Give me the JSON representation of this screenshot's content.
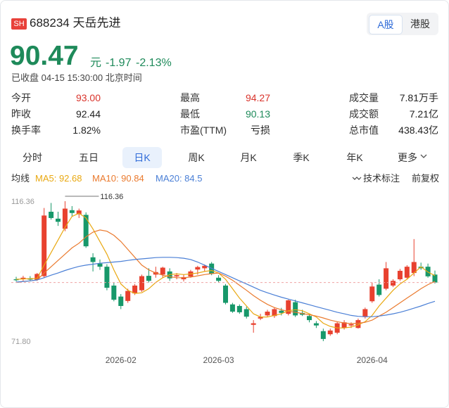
{
  "header": {
    "exchange": "SH",
    "code_name": "688234 天岳先进",
    "markets": [
      "A股",
      "港股"
    ],
    "active_market": 0
  },
  "quote": {
    "price": "90.47",
    "unit": "元",
    "change": "-1.97",
    "change_pct": "-2.13%",
    "color": "#1e8a5a",
    "status": "已收盘 04-15 15:30:00 北京时间"
  },
  "stats": [
    [
      {
        "label": "今开",
        "value": "93.00",
        "color": "#d9332b"
      },
      {
        "label": "最高",
        "value": "94.27",
        "color": "#d9332b"
      },
      {
        "label": "成交量",
        "value": "7.81万手"
      }
    ],
    [
      {
        "label": "昨收",
        "value": "92.44"
      },
      {
        "label": "最低",
        "value": "90.13",
        "color": "#1e8a5a"
      },
      {
        "label": "成交额",
        "value": "7.21亿"
      }
    ],
    [
      {
        "label": "换手率",
        "value": "1.82%"
      },
      {
        "label": "市盈(TTM)",
        "value": "亏损"
      },
      {
        "label": "总市值",
        "value": "438.43亿"
      }
    ]
  ],
  "tabs": [
    "分时",
    "五日",
    "日K",
    "周K",
    "月K",
    "季K",
    "年K",
    "更多"
  ],
  "active_tab": 2,
  "indicators": {
    "label": "均线",
    "tech": "技术标注",
    "adjust": "前复权"
  },
  "chart_data": {
    "type": "candlestick",
    "up_color": "#e8412f",
    "down_color": "#17986a",
    "categories": [
      null,
      null,
      null,
      null,
      null,
      null,
      null,
      null,
      null,
      null,
      null,
      null,
      null,
      null,
      null,
      "2026-02",
      null,
      null,
      null,
      null,
      null,
      null,
      null,
      null,
      null,
      null,
      null,
      null,
      null,
      "2026-03",
      null,
      null,
      null,
      null,
      null,
      null,
      null,
      null,
      null,
      null,
      null,
      null,
      null,
      null,
      null,
      null,
      null,
      null,
      null,
      null,
      null,
      "2026-04",
      null,
      null,
      null,
      null,
      null,
      null,
      null,
      null,
      null
    ],
    "open": [
      91.5,
      91.6,
      91.8,
      91.4,
      92.5,
      113.0,
      110.8,
      107.6,
      113.5,
      112.2,
      112.0,
      98.5,
      96.5,
      95.5,
      89.5,
      86.0,
      84.6,
      87.0,
      88.0,
      92.6,
      93.0,
      93.0,
      94.0,
      92.4,
      91.5,
      92.4,
      94.6,
      95.0,
      96.5,
      92.0,
      89.5,
      83.5,
      83.0,
      82.0,
      77.0,
      79.0,
      80.0,
      79.8,
      81.5,
      80.5,
      84.2,
      80.8,
      79.8,
      77.5,
      75.0,
      74.0,
      74.5,
      76.0,
      76.8,
      76.0,
      79.5,
      84.5,
      89.8,
      88.5,
      89.5,
      91.5,
      92.0,
      93.5,
      95.5,
      95.5,
      93.0
    ],
    "high": [
      92.3,
      92.6,
      92.5,
      93.5,
      114.2,
      115.8,
      113.0,
      116.36,
      114.8,
      114.0,
      112.8,
      99.8,
      97.8,
      96.3,
      90.5,
      86.8,
      88.5,
      90.0,
      93.0,
      95.0,
      95.5,
      95.5,
      95.0,
      93.5,
      93.0,
      94.5,
      95.8,
      96.2,
      97.0,
      92.8,
      90.0,
      84.0,
      83.5,
      82.8,
      78.5,
      80.5,
      81.8,
      82.5,
      82.4,
      85.0,
      85.0,
      81.8,
      80.5,
      78.2,
      75.8,
      75.8,
      78.0,
      78.5,
      77.8,
      79.0,
      82.5,
      90.5,
      91.5,
      97.0,
      91.5,
      94.8,
      96.0,
      104.3,
      96.8,
      96.5,
      94.27
    ],
    "low": [
      90.8,
      91.0,
      90.9,
      91.0,
      92.0,
      110.5,
      108.5,
      106.8,
      111.5,
      111.0,
      101.5,
      94.0,
      94.5,
      88.0,
      84.5,
      82.0,
      84.0,
      86.5,
      87.5,
      90.5,
      92.0,
      92.0,
      91.0,
      91.5,
      90.8,
      92.0,
      93.0,
      94.0,
      92.8,
      90.5,
      83.5,
      80.8,
      80.5,
      79.0,
      74.5,
      78.5,
      79.5,
      79.2,
      80.0,
      80.0,
      79.5,
      79.8,
      77.8,
      76.0,
      71.8,
      73.5,
      74.0,
      75.5,
      76.0,
      75.8,
      79.0,
      84.0,
      86.0,
      88.0,
      89.0,
      91.0,
      91.5,
      92.5,
      94.5,
      92.0,
      90.13
    ],
    "close": [
      91.2,
      92.0,
      91.4,
      93.2,
      111.8,
      111.0,
      109.8,
      114.0,
      112.6,
      113.4,
      102.0,
      97.0,
      95.5,
      88.8,
      85.0,
      83.0,
      87.8,
      89.5,
      92.5,
      91.0,
      93.8,
      95.2,
      91.8,
      92.8,
      92.2,
      94.0,
      95.4,
      95.8,
      93.2,
      91.0,
      84.0,
      81.2,
      81.0,
      79.6,
      77.5,
      79.5,
      81.2,
      82.0,
      80.8,
      84.8,
      80.0,
      80.2,
      78.5,
      76.8,
      72.5,
      75.2,
      77.5,
      77.8,
      77.2,
      78.5,
      82.0,
      89.2,
      86.5,
      95.0,
      91.0,
      94.2,
      95.5,
      97.0,
      95.0,
      92.44,
      90.47
    ],
    "series": [
      {
        "name": "MA5: 92.68",
        "color": "#e9a811",
        "values": [
          91.5,
          91.6,
          91.7,
          91.8,
          96.0,
          100.0,
          104.0,
          108.0,
          111.5,
          112.5,
          111.0,
          107.5,
          103.5,
          99.5,
          94.5,
          90.0,
          88.0,
          87.0,
          87.2,
          88.5,
          90.5,
          92.0,
          93.0,
          93.2,
          93.0,
          93.2,
          93.5,
          94.0,
          94.3,
          93.5,
          91.5,
          88.5,
          85.5,
          83.0,
          80.5,
          79.5,
          79.5,
          80.0,
          80.5,
          81.5,
          81.8,
          81.5,
          80.5,
          79.5,
          77.5,
          76.5,
          76.0,
          76.0,
          76.3,
          77.0,
          78.0,
          80.0,
          83.0,
          85.5,
          88.0,
          90.0,
          91.5,
          93.5,
          95.5,
          93.8,
          92.68
        ]
      },
      {
        "name": "MA10: 90.84",
        "color": "#ea7a2e",
        "values": [
          90.5,
          90.8,
          91.0,
          91.3,
          93.5,
          95.5,
          97.5,
          99.5,
          101.5,
          103.0,
          105.0,
          106.5,
          107.2,
          106.8,
          105.5,
          103.5,
          101.0,
          98.5,
          96.0,
          94.5,
          93.5,
          92.8,
          92.3,
          92.0,
          92.0,
          92.2,
          92.6,
          93.0,
          93.3,
          93.5,
          92.5,
          91.2,
          89.6,
          88.0,
          86.3,
          84.8,
          83.5,
          82.5,
          81.8,
          81.3,
          81.0,
          80.6,
          80.2,
          79.8,
          79.2,
          78.5,
          78.0,
          77.6,
          77.4,
          77.5,
          77.8,
          78.5,
          79.8,
          81.0,
          82.5,
          84.0,
          85.5,
          87.0,
          88.5,
          89.8,
          90.84
        ]
      },
      {
        "name": "MA20: 84.5",
        "color": "#4a7fd6",
        "values": [
          90.6,
          90.8,
          91.0,
          91.3,
          92.0,
          92.8,
          93.5,
          94.3,
          95.0,
          95.6,
          96.0,
          96.3,
          96.6,
          96.8,
          97.0,
          97.2,
          97.5,
          97.8,
          98.0,
          98.2,
          98.4,
          98.5,
          98.5,
          98.4,
          98.2,
          97.8,
          97.0,
          96.0,
          95.0,
          94.0,
          93.0,
          92.0,
          91.0,
          90.0,
          89.0,
          88.0,
          87.2,
          86.5,
          85.8,
          85.2,
          84.6,
          84.0,
          83.4,
          82.8,
          82.2,
          81.6,
          81.0,
          80.5,
          80.0,
          79.7,
          79.6,
          79.6,
          79.8,
          80.1,
          80.5,
          81.0,
          81.6,
          82.3,
          83.0,
          83.8,
          84.5
        ]
      }
    ],
    "ylim": [
      71.8,
      116.36
    ],
    "yticks": [
      {
        "value": 71.8,
        "label": "71.80"
      },
      116.36
    ],
    "last_price_line": true,
    "max_annotation": true
  }
}
